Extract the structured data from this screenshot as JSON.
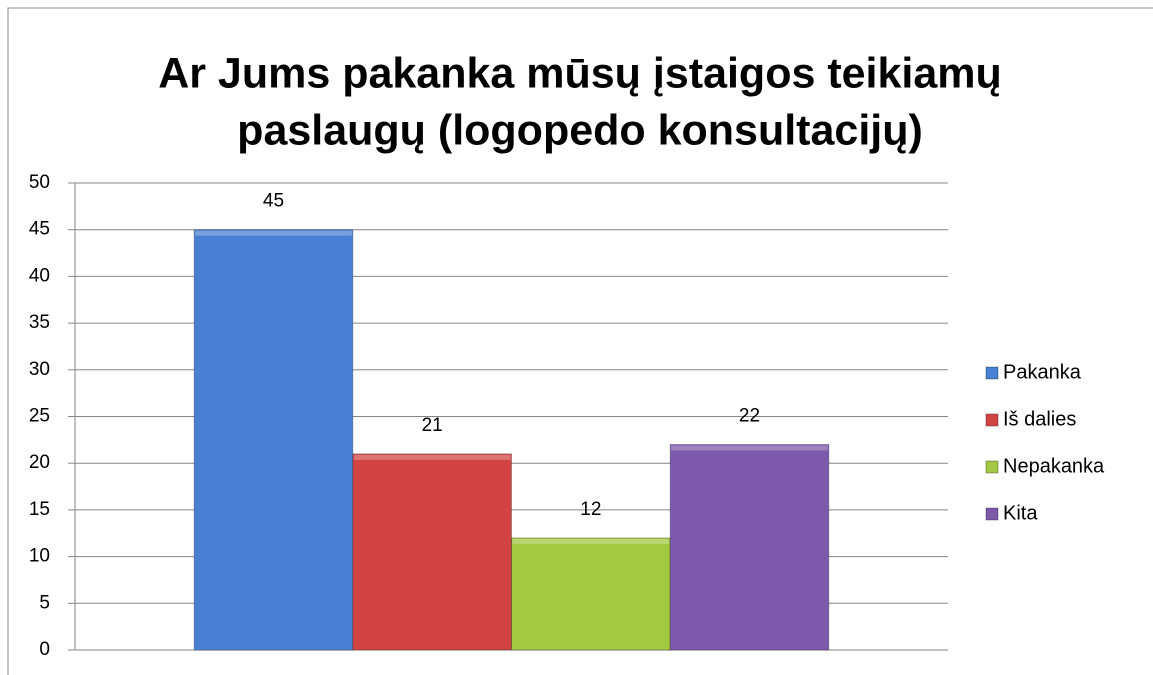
{
  "chart_data": {
    "type": "bar",
    "title": [
      "Ar Jums pakanka mūsų įstaigos teikiamų",
      "paslaugų (logopedo konsultacijų)"
    ],
    "categories": [
      null
    ],
    "series": [
      {
        "name": "Pakanka",
        "color": "#4a80d3",
        "values": [
          45
        ]
      },
      {
        "name": "Iš dalies",
        "color": "#d24443",
        "values": [
          21
        ]
      },
      {
        "name": "Nepakanka",
        "color": "#a3c842",
        "values": [
          12
        ]
      },
      {
        "name": "Kita",
        "color": "#7d5aab",
        "values": [
          22
        ]
      }
    ],
    "ylim": [
      0,
      50
    ],
    "yticks": [
      0,
      5,
      10,
      15,
      20,
      25,
      30,
      35,
      40,
      45,
      50
    ],
    "grid": true,
    "legend": "right"
  }
}
